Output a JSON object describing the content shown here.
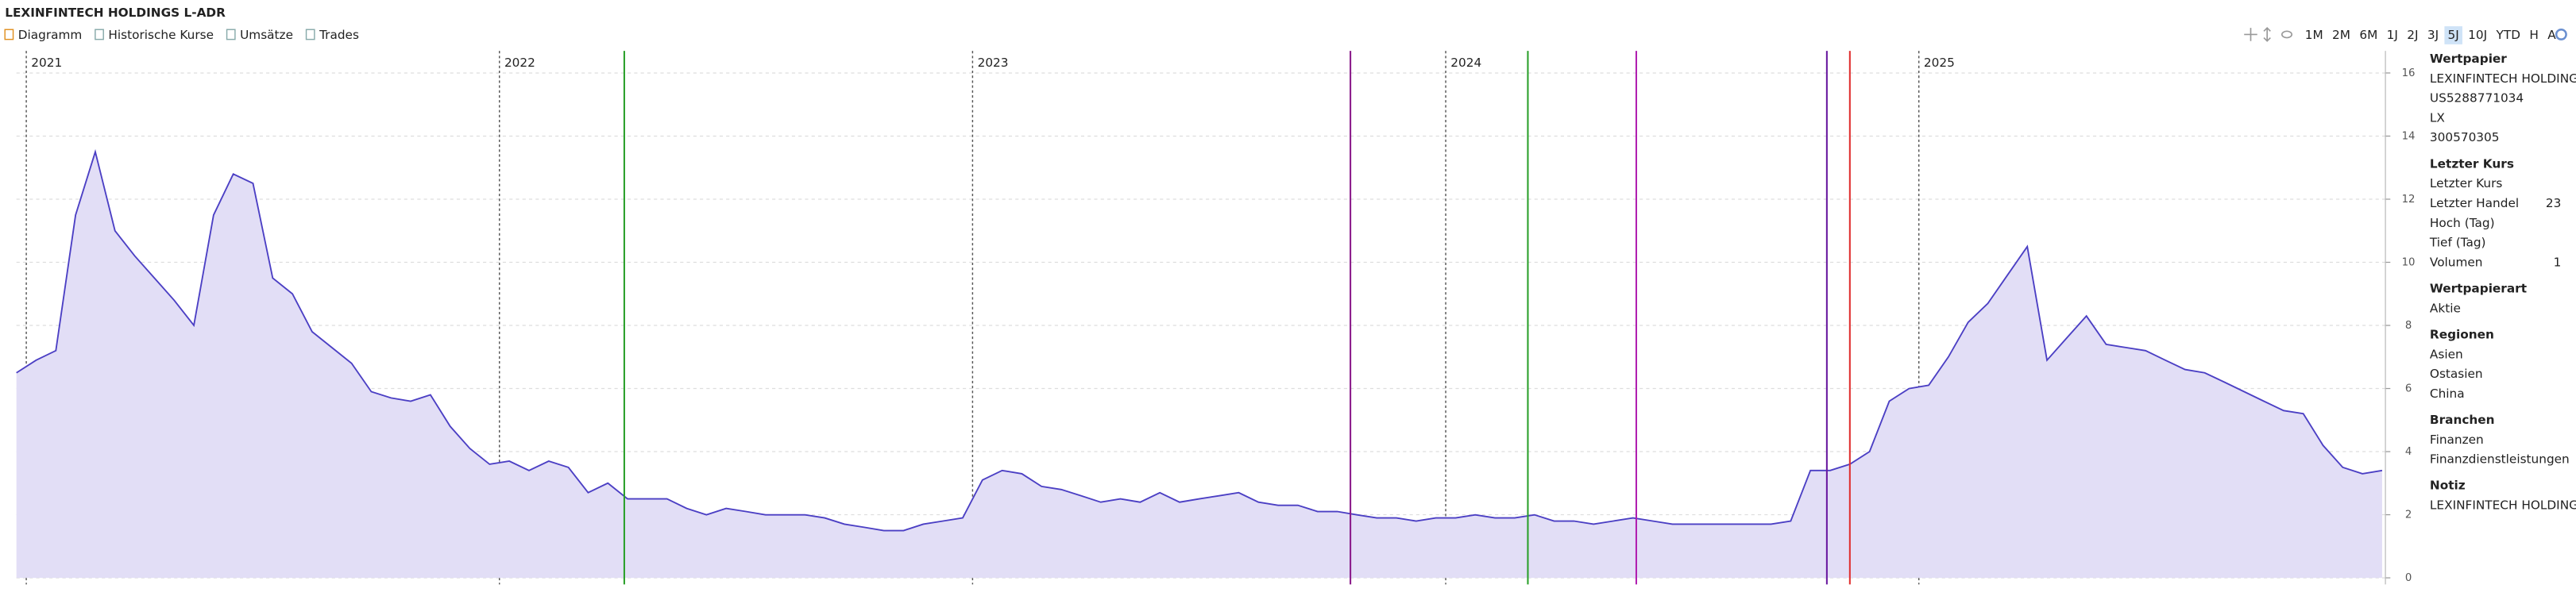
{
  "header": {
    "title": "LEXINFINTECH HOLDINGS L-ADR"
  },
  "tabs": [
    "Diagramm",
    "Historische Kurse",
    "Umsätze",
    "Trades"
  ],
  "ranges": [
    "1M",
    "2M",
    "6M",
    "1J",
    "2J",
    "3J",
    "5J",
    "10J",
    "YTD",
    "H",
    "A"
  ],
  "selected_range": "5J",
  "chart_data": {
    "type": "area",
    "color": "#4b3fc4",
    "fill": "#e2def6",
    "grid": true,
    "ylim": [
      0,
      16.7
    ],
    "yticks": [
      0,
      2,
      4,
      6,
      8,
      10,
      12,
      14,
      16
    ],
    "categories": [
      null,
      "2021",
      null,
      null,
      null,
      null,
      null,
      null,
      null,
      null,
      null,
      null,
      null,
      null,
      null,
      null,
      null,
      null,
      null,
      null,
      null,
      null,
      null,
      null,
      null,
      "2022",
      null,
      null,
      null,
      null,
      null,
      null,
      null,
      null,
      null,
      null,
      null,
      null,
      null,
      null,
      null,
      null,
      null,
      null,
      null,
      null,
      null,
      null,
      null,
      "2023",
      null,
      null,
      null,
      null,
      null,
      null,
      null,
      null,
      null,
      null,
      null,
      null,
      null,
      null,
      null,
      null,
      null,
      null,
      null,
      null,
      null,
      null,
      null,
      "2024",
      null,
      null,
      null,
      null,
      null,
      null,
      null,
      null,
      null,
      null,
      null,
      null,
      null,
      null,
      null,
      null,
      null,
      null,
      null,
      null,
      null,
      null,
      null,
      "2025",
      null,
      null,
      null,
      null,
      null,
      null,
      null,
      null,
      null,
      null,
      null,
      null,
      null,
      null,
      null,
      null,
      null,
      null,
      null,
      null,
      null,
      null,
      null
    ],
    "values": [
      6.5,
      6.9,
      7.2,
      11.5,
      13.5,
      11.0,
      10.2,
      9.5,
      8.8,
      8.0,
      11.5,
      12.8,
      12.5,
      9.5,
      9.0,
      7.8,
      7.3,
      6.8,
      5.9,
      5.7,
      5.6,
      5.8,
      4.8,
      4.1,
      3.6,
      3.7,
      3.4,
      3.7,
      3.5,
      2.7,
      3.0,
      2.5,
      2.5,
      2.5,
      2.2,
      2.0,
      2.2,
      2.1,
      2.0,
      2.0,
      2.0,
      1.9,
      1.7,
      1.6,
      1.5,
      1.5,
      1.7,
      1.8,
      1.9,
      3.1,
      3.4,
      3.3,
      2.9,
      2.8,
      2.6,
      2.4,
      2.5,
      2.4,
      2.7,
      2.4,
      2.5,
      2.6,
      2.7,
      2.4,
      2.3,
      2.3,
      2.1,
      2.1,
      2.0,
      1.9,
      1.9,
      1.8,
      1.9,
      1.9,
      2.0,
      1.9,
      1.9,
      2.0,
      1.8,
      1.8,
      1.7,
      1.8,
      1.9,
      1.8,
      1.7,
      1.7,
      1.7,
      1.7,
      1.7,
      1.7,
      1.8,
      3.4,
      3.4,
      3.6,
      4.0,
      5.6,
      6.0,
      6.1,
      7.0,
      8.1,
      8.7,
      9.6,
      10.5,
      6.9,
      7.6,
      8.3,
      7.4,
      7.3,
      7.2,
      6.9,
      6.6,
      6.5,
      6.2,
      5.9,
      5.6,
      5.3,
      5.2,
      4.2,
      3.5,
      3.3,
      3.4
    ]
  },
  "sidebar": [
    {
      "title": "Wertpapier",
      "rows": [
        [
          "LEXINFINTECH HOLDING"
        ],
        [
          "US5288771034"
        ],
        [
          "LX"
        ],
        [
          "300570305"
        ]
      ]
    },
    {
      "title": "Letzter Kurs",
      "rows": [
        [
          "Letzter Kurs"
        ],
        [
          "Letzter Handel",
          "23"
        ],
        [
          "Hoch (Tag)"
        ],
        [
          "Tief (Tag)"
        ],
        [
          "Volumen",
          "1"
        ]
      ]
    },
    {
      "title": "Wertpapierart",
      "rows": [
        [
          "Aktie"
        ]
      ]
    },
    {
      "title": "Regionen",
      "rows": [
        [
          "Asien"
        ],
        [
          "Ostasien"
        ],
        [
          "China"
        ]
      ]
    },
    {
      "title": "Branchen",
      "rows": [
        [
          "Finanzen"
        ],
        [
          "Finanzdienstleistungen"
        ]
      ]
    },
    {
      "title": "Notiz",
      "rows": [
        [
          "LEXINFINTECH HOLDING"
        ]
      ]
    }
  ]
}
